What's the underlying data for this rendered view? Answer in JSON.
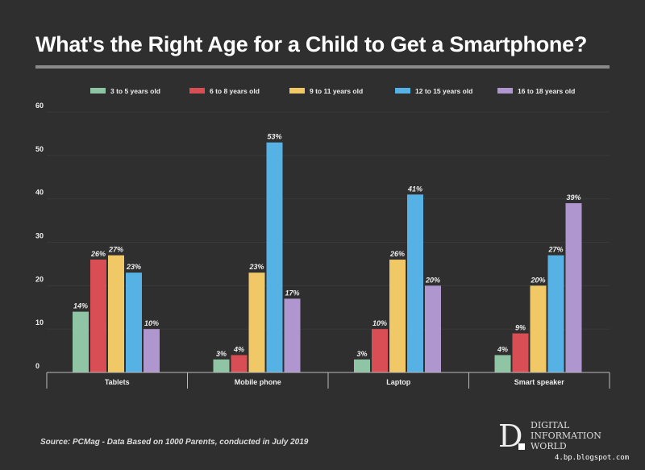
{
  "chart_data": {
    "type": "bar",
    "title": "What's the Right Age for a Child to Get a Smartphone?",
    "categories": [
      "Tablets",
      "Mobile phone",
      "Laptop",
      "Smart speaker"
    ],
    "series": [
      {
        "name": "3 to 5 years old",
        "color": "#8fc4a4",
        "values": [
          14,
          3,
          3,
          4
        ]
      },
      {
        "name": "6 to 8 years old",
        "color": "#d94e55",
        "values": [
          26,
          4,
          10,
          9
        ]
      },
      {
        "name": "9 to 11 years old",
        "color": "#f0c866",
        "values": [
          27,
          23,
          26,
          20
        ]
      },
      {
        "name": "12 to 15 years old",
        "color": "#56b2e4",
        "values": [
          23,
          53,
          41,
          27
        ]
      },
      {
        "name": "16 to 18 years old",
        "color": "#b096cf",
        "values": [
          10,
          17,
          20,
          39
        ]
      }
    ],
    "ylim": [
      0,
      60
    ],
    "yticks": [
      0,
      10,
      20,
      30,
      40,
      50,
      60
    ],
    "value_suffix": "%",
    "legend": "top"
  },
  "source": "Source: PCMag - Data Based on 1000 Parents, conducted in July 2019",
  "logo": {
    "letter": "D",
    "lines": [
      "DIGITAL",
      "INFORMATION",
      "WORLD"
    ]
  },
  "watermark": "4.bp.blogspot.com"
}
